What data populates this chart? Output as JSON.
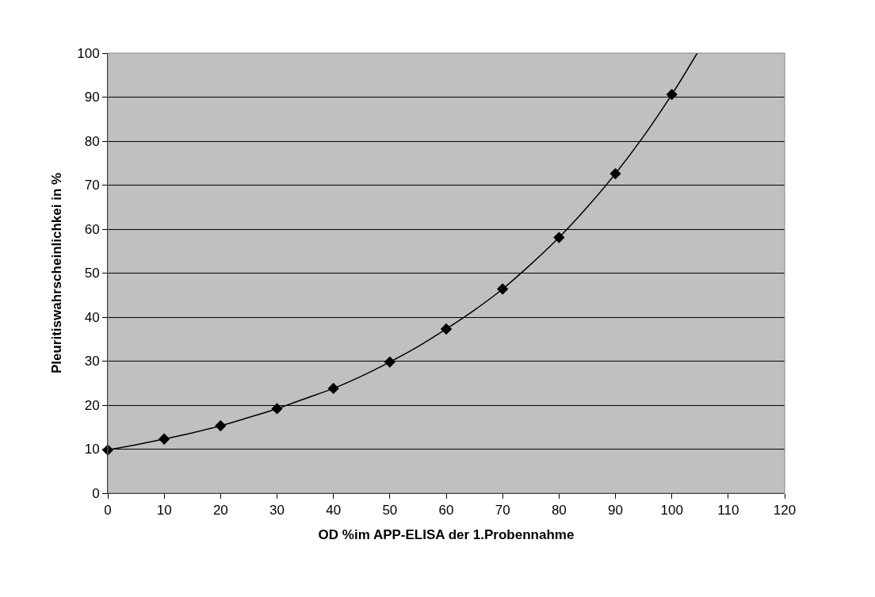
{
  "chart_data": {
    "type": "scatter",
    "xlabel": "OD %im APP-ELISA der 1.Probennahme",
    "ylabel": "Pleuritiswahrscheinlichkei in %",
    "xlim": [
      0,
      120
    ],
    "xticks": [
      0,
      10,
      20,
      30,
      40,
      50,
      60,
      70,
      80,
      90,
      100,
      110,
      120
    ],
    "ylim": [
      0,
      100
    ],
    "yticks": [
      0,
      10,
      20,
      30,
      40,
      50,
      60,
      70,
      80,
      90,
      100
    ],
    "grid": "y",
    "series": [
      {
        "type": "line",
        "color": "#000000",
        "marker": "none",
        "line_style": "solid",
        "x": [
          0,
          5,
          10,
          15,
          20,
          25,
          30,
          35,
          40,
          45,
          50,
          55,
          60,
          65,
          70,
          75,
          80,
          85,
          90,
          95,
          100,
          104.5
        ],
        "values": [
          9.8,
          11.0,
          12.3,
          13.7,
          15.3,
          17.2,
          19.2,
          21.5,
          23.8,
          26.6,
          29.8,
          33.3,
          37.3,
          41.6,
          46.4,
          52.0,
          58.1,
          65.0,
          72.6,
          81.1,
          90.6,
          100
        ]
      },
      {
        "color": "#000000",
        "marker": "diamond",
        "x": [
          0,
          10,
          20,
          30,
          40,
          50,
          60,
          70,
          80,
          90,
          100
        ],
        "values": [
          9.8,
          12.3,
          15.3,
          19.2,
          23.8,
          29.8,
          37.3,
          46.4,
          58.1,
          72.6,
          90.6
        ]
      }
    ]
  }
}
